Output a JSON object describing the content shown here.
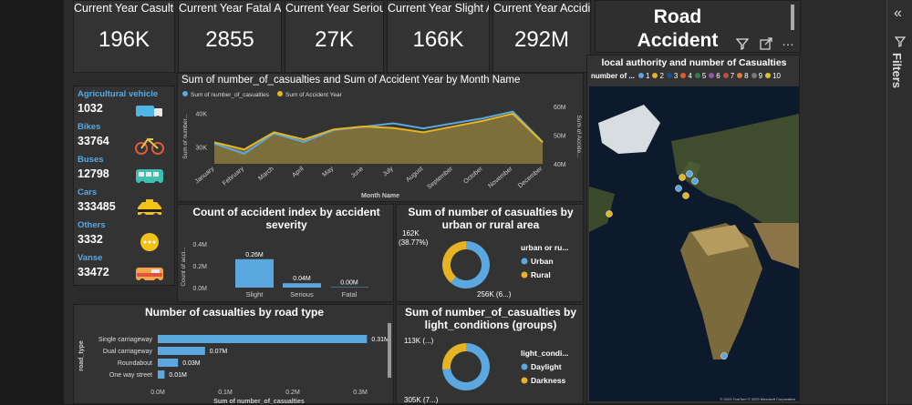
{
  "kpis": [
    {
      "label": "Current Year Casulties",
      "value": "196K"
    },
    {
      "label": "Current Year Fatal Accident",
      "value": "2855"
    },
    {
      "label": "Current Year Seriou Accident",
      "value": "27K"
    },
    {
      "label": "Current Year Slight Accident",
      "value": "166K"
    },
    {
      "label": "Current Year Accidint",
      "value": "292M"
    }
  ],
  "report_title": "Road Accident Analysis",
  "vehicles": [
    {
      "name": "Agricultural vehicle",
      "value": "1032",
      "icon": "truck-icon"
    },
    {
      "name": "Bikes",
      "value": "33764",
      "icon": "bicycle-icon"
    },
    {
      "name": "Buses",
      "value": "12798",
      "icon": "bus-icon"
    },
    {
      "name": "Cars",
      "value": "333485",
      "icon": "taxi-icon"
    },
    {
      "name": "Others",
      "value": "3332",
      "icon": "more-icon"
    },
    {
      "name": "Vanse",
      "value": "33472",
      "icon": "van-icon"
    }
  ],
  "colors": {
    "blue": "#5ba7e0",
    "gold": "#e6b422",
    "panel": "#333333"
  },
  "line_chart": {
    "title": "Sum of number_of_casualties and Sum of Accident Year by Month Name",
    "legend": [
      "Sum of number_of_casualties",
      "Sum of Accident Year"
    ],
    "xlabel": "Month Name",
    "ylabel_left": "Sum of number...",
    "ylabel_right": "Sum of Accide...",
    "left_ticks": [
      "40K",
      "30K"
    ],
    "right_ticks": [
      "60M",
      "50M",
      "40M"
    ],
    "chart_data": {
      "type": "line",
      "categories": [
        "January",
        "February",
        "March",
        "April",
        "May",
        "June",
        "July",
        "August",
        "September",
        "October",
        "November",
        "December"
      ],
      "series": [
        {
          "name": "Sum of number_of_casualties",
          "values": [
            31000,
            28000,
            34000,
            31500,
            35000,
            36000,
            37000,
            35500,
            37000,
            38500,
            40500,
            31500
          ]
        },
        {
          "name": "Sum of Accident Year",
          "values": [
            47500,
            45000,
            51000,
            48500,
            52000,
            53000,
            52500,
            51000,
            53000,
            55000,
            57500,
            47500
          ]
        }
      ],
      "ylim_left": [
        25000,
        42000
      ],
      "ylim_right": [
        40000,
        60000
      ]
    }
  },
  "severity_chart": {
    "title": "Count of accident index by accident severity",
    "ylabel": "Count of acci...",
    "y_ticks": [
      "0.4M",
      "0.2M",
      "0.0M"
    ],
    "data_labels": [
      "0.26M",
      "0.04M",
      "0.00M"
    ],
    "chart_data": {
      "type": "bar",
      "categories": [
        "Slight",
        "Serious",
        "Fatal"
      ],
      "values": [
        0.26,
        0.04,
        0.004
      ],
      "ylim": [
        0,
        0.4
      ]
    }
  },
  "urban_chart": {
    "title": "Sum of number of casualties by urban or rural area",
    "legend_title": "urban or ru...",
    "labels": [
      "162K (38.77%)",
      "256K (6...)"
    ],
    "chart_data": {
      "type": "pie",
      "categories": [
        "Urban",
        "Rural"
      ],
      "values": [
        256,
        162
      ]
    }
  },
  "road_chart": {
    "title": "Number of casualties by road type",
    "ylabel": "road_type",
    "xlabel": "Sum of number_of_casualties",
    "x_ticks": [
      "0.0M",
      "0.1M",
      "0.2M",
      "0.3M"
    ],
    "data_labels": [
      "0.31M",
      "0.07M",
      "0.03M",
      "0.01M"
    ],
    "chart_data": {
      "type": "bar",
      "categories": [
        "Single carriageway",
        "Dual carriageway",
        "Roundabout",
        "One way street"
      ],
      "values": [
        0.31,
        0.07,
        0.03,
        0.01
      ],
      "xlim": [
        0,
        0.3
      ]
    }
  },
  "light_chart": {
    "title": "Sum of number_of_casualties by light_conditions (groups)",
    "legend_title": "light_condi...",
    "labels": [
      "113K (...)",
      "305K (7...)"
    ],
    "chart_data": {
      "type": "pie",
      "categories": [
        "Daylight",
        "Darkness"
      ],
      "values": [
        305,
        113
      ]
    }
  },
  "map": {
    "title": "local authority and number of Casualties",
    "legend_title": "number of ...",
    "legend_items": [
      "1",
      "2",
      "3",
      "4",
      "5",
      "6",
      "7",
      "8",
      "9",
      "10"
    ],
    "legend_colors": [
      "#5ba7e0",
      "#e6b422",
      "#1f4e8c",
      "#d9602a",
      "#2f7e4e",
      "#8c5aa8",
      "#c44a4a",
      "#e07a3a",
      "#7a7a7a",
      "#d6c630"
    ],
    "credit": "© 2023 TomTom © 2023 Microsoft Corporation"
  },
  "filters_label": "Filters"
}
